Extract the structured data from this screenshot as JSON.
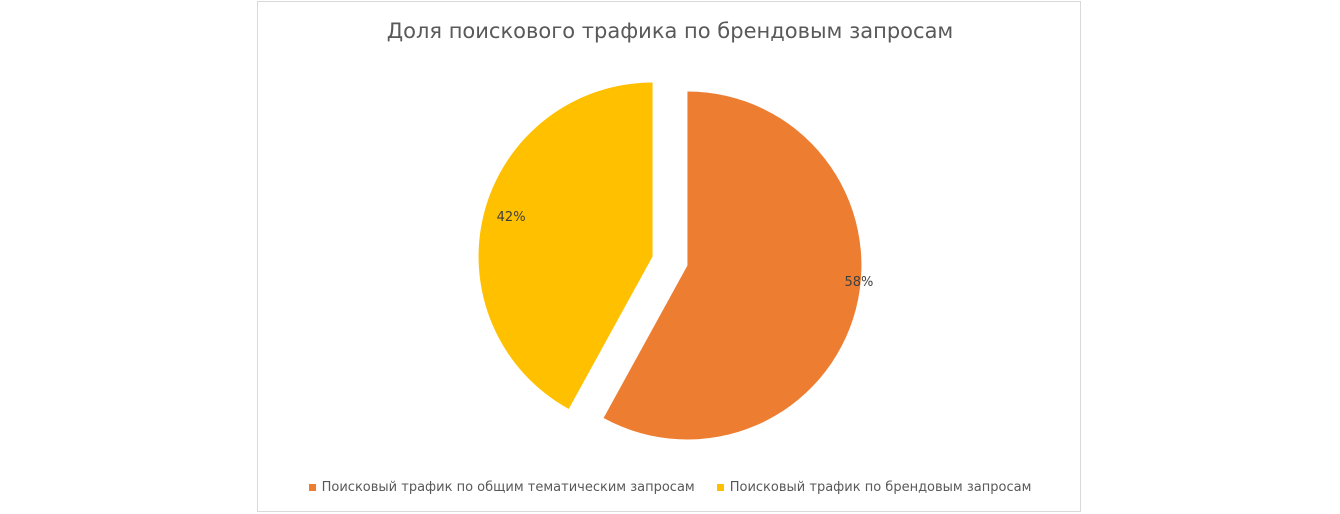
{
  "chart_data": {
    "type": "pie",
    "title": "Доля поискового трафика по брендовым запросам",
    "slices": [
      {
        "name": "Поисковый трафик по общим тематическим запросам",
        "value": 58,
        "label": "58%",
        "color": "#ED7D31"
      },
      {
        "name": "Поисковый трафик по брендовым запросам",
        "value": 42,
        "label": "42%",
        "color": "#FFC000"
      }
    ],
    "exploded": true,
    "legend_position": "bottom"
  }
}
